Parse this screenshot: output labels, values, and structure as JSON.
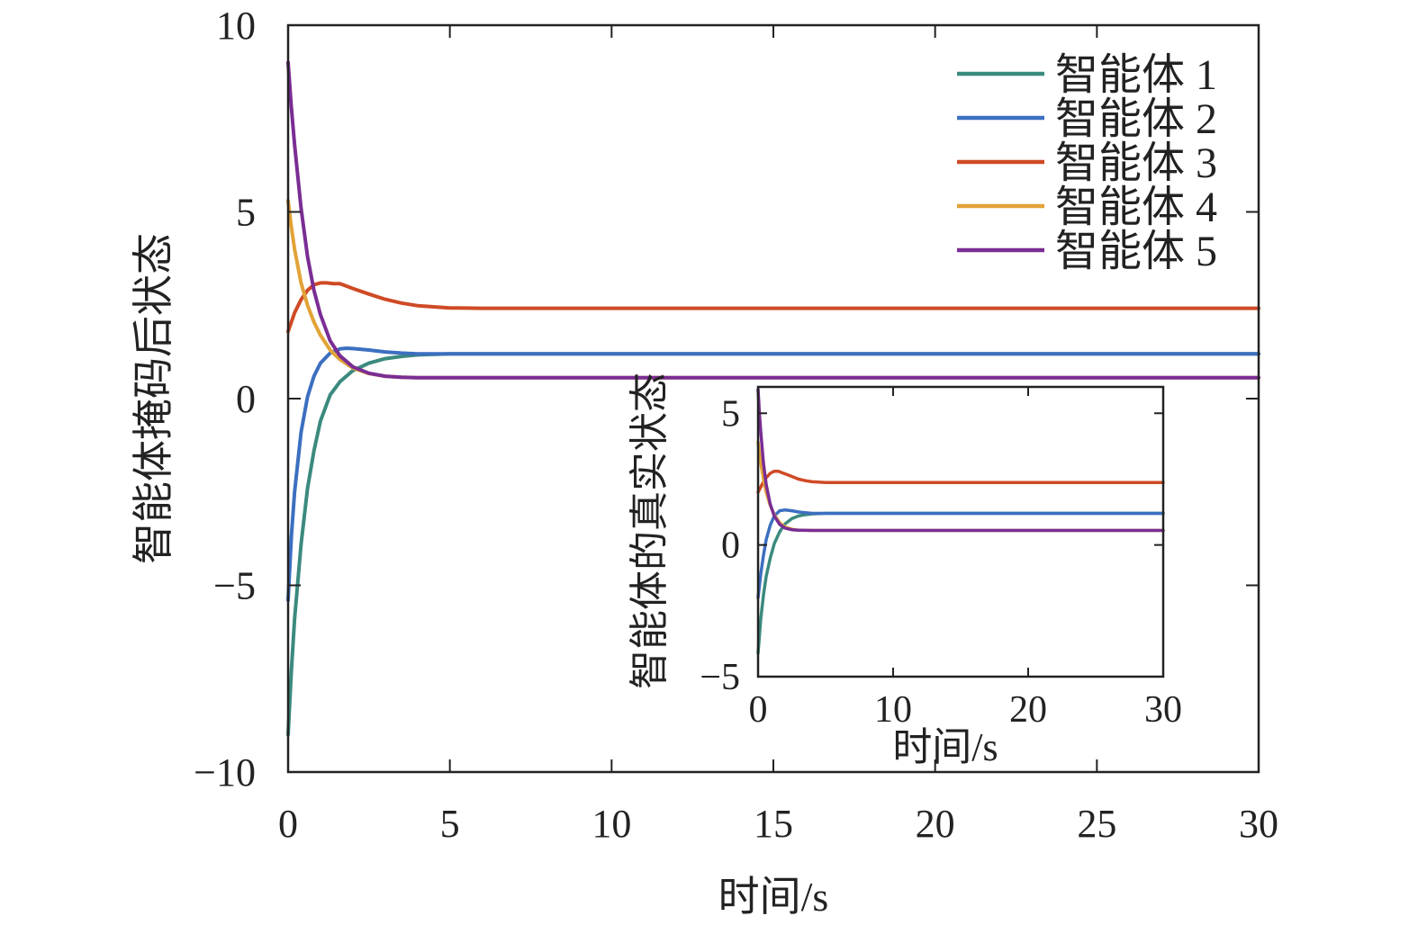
{
  "chart_data": [
    {
      "type": "line",
      "xlabel": "时间/s",
      "ylabel": "智能体掩码后状态",
      "xlim": [
        0,
        30
      ],
      "ylim": [
        -10,
        10
      ],
      "xticks": [
        0,
        5,
        10,
        15,
        20,
        25,
        30
      ],
      "yticks": [
        -10,
        -5,
        0,
        5,
        10
      ],
      "xtick_labels": [
        "0",
        "5",
        "10",
        "15",
        "20",
        "25",
        "30"
      ],
      "ytick_labels": [
        "−10",
        "−5",
        "0",
        "5",
        "10"
      ],
      "grid": false,
      "legend": "top-right",
      "series": [
        {
          "name": "智能体 1",
          "color": "#3b8a7e",
          "x": [
            0,
            0.1,
            0.2,
            0.4,
            0.6,
            0.8,
            1.0,
            1.3,
            1.6,
            2.0,
            2.5,
            3.0,
            3.5,
            4.0,
            5.0,
            6.0,
            8.0,
            10,
            15,
            20,
            25,
            30
          ],
          "y": [
            -9.0,
            -7.3,
            -5.9,
            -3.9,
            -2.4,
            -1.4,
            -0.6,
            0.1,
            0.45,
            0.75,
            0.95,
            1.07,
            1.13,
            1.17,
            1.2,
            1.2,
            1.2,
            1.2,
            1.2,
            1.2,
            1.2,
            1.2
          ]
        },
        {
          "name": "智能体 2",
          "color": "#3c6fc0",
          "x": [
            0,
            0.1,
            0.2,
            0.4,
            0.6,
            0.8,
            1.0,
            1.3,
            1.6,
            1.8,
            2.0,
            2.5,
            3.0,
            3.5,
            4.0,
            5.0,
            6.0,
            8.0,
            10,
            15,
            20,
            25,
            30
          ],
          "y": [
            -5.4,
            -3.7,
            -2.5,
            -0.9,
            0.05,
            0.6,
            0.95,
            1.22,
            1.33,
            1.35,
            1.34,
            1.3,
            1.25,
            1.22,
            1.2,
            1.2,
            1.2,
            1.2,
            1.2,
            1.2,
            1.2,
            1.2,
            1.2
          ]
        },
        {
          "name": "智能体 3",
          "color": "#cf4a26",
          "x": [
            0,
            0.2,
            0.4,
            0.6,
            0.8,
            1.0,
            1.2,
            1.4,
            1.6,
            2.0,
            2.5,
            3.0,
            3.5,
            4.0,
            5.0,
            6.0,
            8.0,
            10,
            15,
            20,
            25,
            30
          ],
          "y": [
            1.8,
            2.3,
            2.65,
            2.9,
            3.05,
            3.1,
            3.1,
            3.08,
            3.08,
            2.95,
            2.8,
            2.66,
            2.56,
            2.49,
            2.43,
            2.42,
            2.42,
            2.42,
            2.42,
            2.42,
            2.42,
            2.42
          ]
        },
        {
          "name": "智能体 4",
          "color": "#e2a337",
          "x": [
            0,
            0.1,
            0.2,
            0.4,
            0.6,
            0.8,
            1.0,
            1.3,
            1.6,
            2.0,
            2.5,
            3.0,
            3.5,
            4.0,
            5.0,
            6.0,
            8.0,
            10,
            15,
            20,
            25,
            30
          ],
          "y": [
            5.3,
            4.6,
            4.0,
            3.1,
            2.5,
            2.05,
            1.7,
            1.3,
            1.05,
            0.82,
            0.67,
            0.6,
            0.57,
            0.56,
            0.56,
            0.56,
            0.56,
            0.56,
            0.56,
            0.56,
            0.56,
            0.56
          ]
        },
        {
          "name": "智能体 5",
          "color": "#7a2d94",
          "x": [
            0,
            0.1,
            0.2,
            0.4,
            0.6,
            0.8,
            1.0,
            1.3,
            1.6,
            2.0,
            2.5,
            3.0,
            3.5,
            4.0,
            5.0,
            6.0,
            8.0,
            10,
            15,
            20,
            25,
            30
          ],
          "y": [
            9.0,
            7.8,
            6.8,
            5.1,
            3.8,
            2.9,
            2.25,
            1.55,
            1.15,
            0.85,
            0.68,
            0.6,
            0.57,
            0.56,
            0.56,
            0.56,
            0.56,
            0.56,
            0.56,
            0.56,
            0.56,
            0.56
          ]
        }
      ]
    },
    {
      "type": "line",
      "xlabel": "时间/s",
      "ylabel": "智能体的真实状态",
      "xlim": [
        0,
        30
      ],
      "ylim": [
        -5,
        6
      ],
      "xticks": [
        0,
        10,
        20,
        30
      ],
      "yticks": [
        -5,
        0,
        5
      ],
      "xtick_labels": [
        "0",
        "10",
        "20",
        "30"
      ],
      "ytick_labels": [
        "−5",
        "0",
        "5"
      ],
      "grid": false,
      "series": [
        {
          "color": "#3b8a7e",
          "x": [
            0,
            0.2,
            0.4,
            0.6,
            0.9,
            1.2,
            1.6,
            2.0,
            2.5,
            3.0,
            3.5,
            4.0,
            5.0,
            8.0,
            15,
            30
          ],
          "y": [
            -4.1,
            -2.8,
            -1.9,
            -1.2,
            -0.5,
            0.05,
            0.5,
            0.8,
            1.0,
            1.1,
            1.15,
            1.18,
            1.2,
            1.2,
            1.2,
            1.2
          ]
        },
        {
          "color": "#3c6fc0",
          "x": [
            0,
            0.2,
            0.4,
            0.6,
            0.9,
            1.2,
            1.6,
            2.0,
            2.5,
            3.0,
            4.0,
            5.0,
            8.0,
            15,
            30
          ],
          "y": [
            -2.0,
            -1.1,
            -0.4,
            0.2,
            0.75,
            1.1,
            1.3,
            1.33,
            1.3,
            1.25,
            1.2,
            1.2,
            1.2,
            1.2,
            1.2
          ]
        },
        {
          "color": "#cf4a26",
          "x": [
            0,
            0.3,
            0.6,
            0.9,
            1.2,
            1.5,
            2.0,
            2.5,
            3.0,
            3.5,
            4.0,
            5.0,
            8.0,
            15,
            30
          ],
          "y": [
            2.0,
            2.3,
            2.55,
            2.72,
            2.8,
            2.8,
            2.7,
            2.6,
            2.5,
            2.44,
            2.4,
            2.37,
            2.37,
            2.37,
            2.37
          ]
        },
        {
          "color": "#e2a337",
          "x": [
            0,
            0.2,
            0.4,
            0.6,
            0.9,
            1.2,
            1.6,
            2.0,
            2.5,
            3.0,
            4.0,
            5.0,
            8.0,
            15,
            30
          ],
          "y": [
            3.9,
            3.1,
            2.5,
            2.0,
            1.5,
            1.15,
            0.85,
            0.68,
            0.6,
            0.56,
            0.55,
            0.55,
            0.55,
            0.55,
            0.55
          ]
        },
        {
          "color": "#7a2d94",
          "x": [
            0,
            0.1,
            0.2,
            0.4,
            0.6,
            0.9,
            1.2,
            1.6,
            2.0,
            2.5,
            3.0,
            4.0,
            5.0,
            8.0,
            15,
            30
          ],
          "y": [
            5.9,
            5.0,
            4.3,
            3.1,
            2.3,
            1.55,
            1.1,
            0.78,
            0.64,
            0.58,
            0.56,
            0.55,
            0.55,
            0.55,
            0.55,
            0.55
          ]
        }
      ]
    }
  ]
}
